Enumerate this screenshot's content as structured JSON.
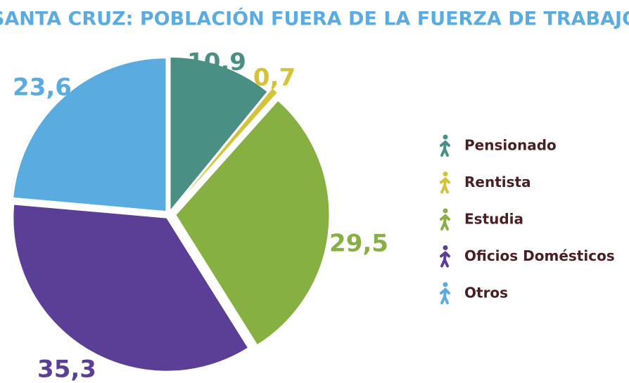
{
  "chart_data": {
    "type": "pie",
    "title": "SANTA CRUZ: POBLACIÓN FUERA DE LA FUERZA DE TRABAJO",
    "categories": [
      "Pensionado",
      "Rentista",
      "Estudia",
      "Oficios Domésticos",
      "Otros"
    ],
    "values": [
      10.9,
      0.7,
      29.5,
      35.3,
      23.6
    ],
    "value_labels": [
      "10,9",
      "0,7",
      "29,5",
      "35,3",
      "23,6"
    ],
    "colors": [
      "#4a8f84",
      "#d4c23a",
      "#86b042",
      "#5b3f96",
      "#5aace0"
    ],
    "legend": "right"
  }
}
